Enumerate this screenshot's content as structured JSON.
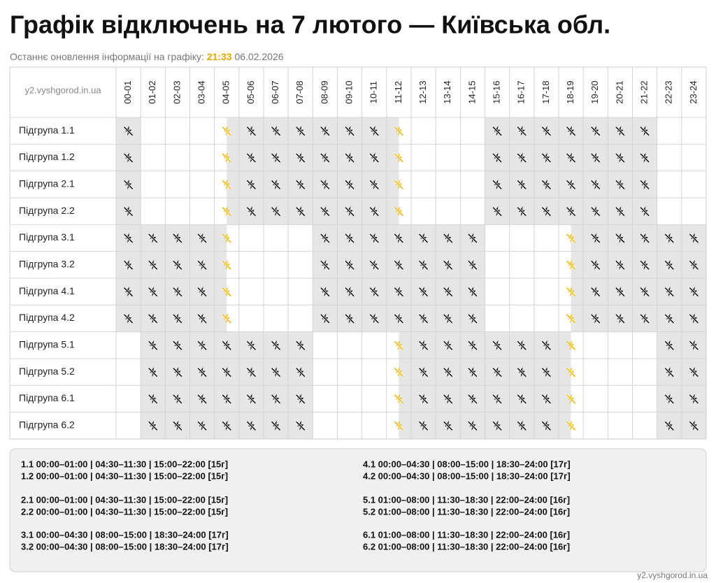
{
  "header": {
    "title": "Графік відключень на 7 лютого — Київська обл.",
    "update_label": "Останнє оновлення інформації на графіку:",
    "update_time": "21:33",
    "update_date": "06.02.2026"
  },
  "table": {
    "corner": "y2.vyshgorod.in.ua",
    "hours": [
      "00-01",
      "01-02",
      "02-03",
      "03-04",
      "04-05",
      "05-06",
      "06-07",
      "07-08",
      "08-09",
      "09-10",
      "10-11",
      "11-12",
      "12-13",
      "13-14",
      "14-15",
      "15-16",
      "16-17",
      "17-18",
      "18-19",
      "19-20",
      "20-21",
      "21-22",
      "22-23",
      "23-24"
    ],
    "rows": [
      {
        "label": "Підгрупа 1.1",
        "cells": [
          "off",
          "on",
          "on",
          "on",
          "half-late",
          "off",
          "off",
          "off",
          "off",
          "off",
          "off",
          "half-early",
          "on",
          "on",
          "on",
          "off",
          "off",
          "off",
          "off",
          "off",
          "off",
          "off",
          "on",
          "on"
        ]
      },
      {
        "label": "Підгрупа 1.2",
        "cells": [
          "off",
          "on",
          "on",
          "on",
          "half-late",
          "off",
          "off",
          "off",
          "off",
          "off",
          "off",
          "half-early",
          "on",
          "on",
          "on",
          "off",
          "off",
          "off",
          "off",
          "off",
          "off",
          "off",
          "on",
          "on"
        ]
      },
      {
        "label": "Підгрупа 2.1",
        "cells": [
          "off",
          "on",
          "on",
          "on",
          "half-late",
          "off",
          "off",
          "off",
          "off",
          "off",
          "off",
          "half-early",
          "on",
          "on",
          "on",
          "off",
          "off",
          "off",
          "off",
          "off",
          "off",
          "off",
          "on",
          "on"
        ]
      },
      {
        "label": "Підгрупа 2.2",
        "cells": [
          "off",
          "on",
          "on",
          "on",
          "half-late",
          "off",
          "off",
          "off",
          "off",
          "off",
          "off",
          "half-early",
          "on",
          "on",
          "on",
          "off",
          "off",
          "off",
          "off",
          "off",
          "off",
          "off",
          "on",
          "on"
        ]
      },
      {
        "label": "Підгрупа 3.1",
        "cells": [
          "off",
          "off",
          "off",
          "off",
          "half-early",
          "on",
          "on",
          "on",
          "off",
          "off",
          "off",
          "off",
          "off",
          "off",
          "off",
          "on",
          "on",
          "on",
          "half-late",
          "off",
          "off",
          "off",
          "off",
          "off"
        ]
      },
      {
        "label": "Підгрупа 3.2",
        "cells": [
          "off",
          "off",
          "off",
          "off",
          "half-early",
          "on",
          "on",
          "on",
          "off",
          "off",
          "off",
          "off",
          "off",
          "off",
          "off",
          "on",
          "on",
          "on",
          "half-late",
          "off",
          "off",
          "off",
          "off",
          "off"
        ]
      },
      {
        "label": "Підгрупа 4.1",
        "cells": [
          "off",
          "off",
          "off",
          "off",
          "half-early",
          "on",
          "on",
          "on",
          "off",
          "off",
          "off",
          "off",
          "off",
          "off",
          "off",
          "on",
          "on",
          "on",
          "half-late",
          "off",
          "off",
          "off",
          "off",
          "off"
        ]
      },
      {
        "label": "Підгрупа 4.2",
        "cells": [
          "off",
          "off",
          "off",
          "off",
          "half-early",
          "on",
          "on",
          "on",
          "off",
          "off",
          "off",
          "off",
          "off",
          "off",
          "off",
          "on",
          "on",
          "on",
          "half-late",
          "off",
          "off",
          "off",
          "off",
          "off"
        ]
      },
      {
        "label": "Підгрупа 5.1",
        "cells": [
          "on",
          "off",
          "off",
          "off",
          "off",
          "off",
          "off",
          "off",
          "on",
          "on",
          "on",
          "half-late",
          "off",
          "off",
          "off",
          "off",
          "off",
          "off",
          "half-early",
          "on",
          "on",
          "on",
          "off",
          "off"
        ]
      },
      {
        "label": "Підгрупа 5.2",
        "cells": [
          "on",
          "off",
          "off",
          "off",
          "off",
          "off",
          "off",
          "off",
          "on",
          "on",
          "on",
          "half-late",
          "off",
          "off",
          "off",
          "off",
          "off",
          "off",
          "half-early",
          "on",
          "on",
          "on",
          "off",
          "off"
        ]
      },
      {
        "label": "Підгрупа 6.1",
        "cells": [
          "on",
          "off",
          "off",
          "off",
          "off",
          "off",
          "off",
          "off",
          "on",
          "on",
          "on",
          "half-late",
          "off",
          "off",
          "off",
          "off",
          "off",
          "off",
          "half-early",
          "on",
          "on",
          "on",
          "off",
          "off"
        ]
      },
      {
        "label": "Підгрупа 6.2",
        "cells": [
          "on",
          "off",
          "off",
          "off",
          "off",
          "off",
          "off",
          "off",
          "on",
          "on",
          "on",
          "half-late",
          "off",
          "off",
          "off",
          "off",
          "off",
          "off",
          "half-early",
          "on",
          "on",
          "on",
          "off",
          "off"
        ]
      }
    ]
  },
  "legend": [
    [
      "1.1 00:00–01:00 | 04:30–11:30 | 15:00–22:00 [15г]",
      "1.2 00:00–01:00 | 04:30–11:30 | 15:00–22:00 [15г]"
    ],
    [
      "2.1 00:00–01:00 | 04:30–11:30 | 15:00–22:00 [15г]",
      "2.2 00:00–01:00 | 04:30–11:30 | 15:00–22:00 [15г]"
    ],
    [
      "3.1 00:00–04:30 | 08:00–15:00 | 18:30–24:00 [17г]",
      "3.2 00:00–04:30 | 08:00–15:00 | 18:30–24:00 [17г]"
    ],
    [
      "4.1 00:00–04:30 | 08:00–15:00 | 18:30–24:00 [17г]",
      "4.2 00:00–04:30 | 08:00–15:00 | 18:30–24:00 [17г]"
    ],
    [
      "5.1 01:00–08:00 | 11:30–18:30 | 22:00–24:00 [16г]",
      "5.2 01:00–08:00 | 11:30–18:30 | 22:00–24:00 [16г]"
    ],
    [
      "6.1 01:00–08:00 | 11:30–18:30 | 22:00–24:00 [16г]",
      "6.2 01:00–08:00 | 11:30–18:30 | 22:00–24:00 [16г]"
    ]
  ],
  "footer": "y2.vyshgorod.in.ua"
}
